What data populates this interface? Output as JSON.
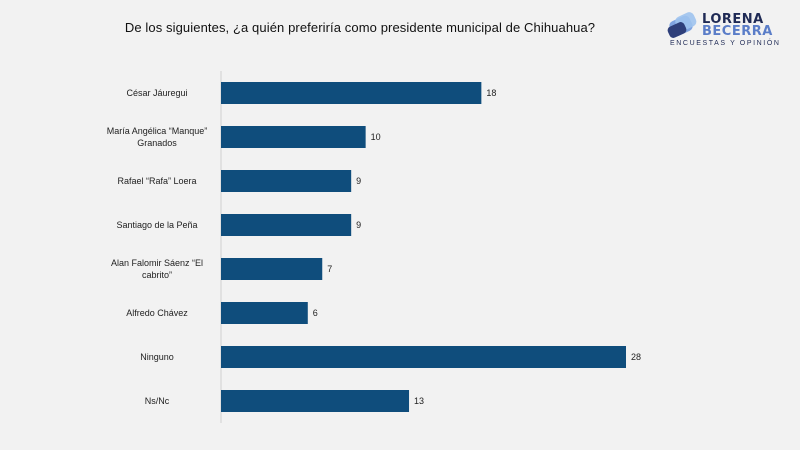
{
  "title": "De los siguientes, ¿a quién preferiría como presidente municipal de Chihuahua?",
  "logo": {
    "line1": "LORENA",
    "line2": "BECERRA",
    "tagline": "ENCUESTAS Y OPINIÓN"
  },
  "colors": {
    "bar": "#0f4d7c",
    "background": "#f2f2f2"
  },
  "chart_data": {
    "type": "bar",
    "orientation": "horizontal",
    "title": "De los siguientes, ¿a quién preferiría como presidente municipal de Chihuahua?",
    "xlabel": "",
    "ylabel": "",
    "categories": [
      [
        "César Jáuregui"
      ],
      [
        "María Angélica “Manque”",
        "Granados"
      ],
      [
        "Rafael “Rafa” Loera"
      ],
      [
        "Santiago de la Peña"
      ],
      [
        "Alan Falomir Sáenz “El",
        "cabrito”"
      ],
      [
        "Alfredo Chávez"
      ],
      [
        "Ninguno"
      ],
      [
        "Ns/Nc"
      ]
    ],
    "values": [
      18,
      10,
      9,
      9,
      7,
      6,
      28,
      13
    ],
    "xlim": [
      0,
      28
    ],
    "grid": false,
    "legend": "none"
  }
}
